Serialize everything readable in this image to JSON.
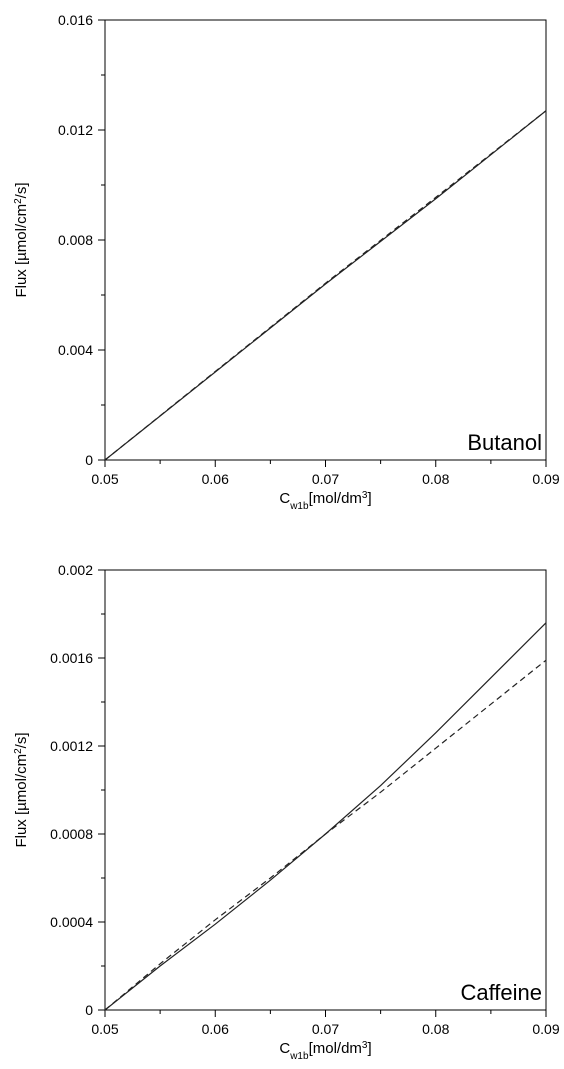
{
  "chart_data": [
    {
      "type": "line",
      "annotation": "Butanol",
      "xlabel": {
        "main": "C",
        "sub": "w1b",
        "unit": "[mol/dm",
        "sup": "3",
        "close": "]"
      },
      "ylabel": {
        "pre": "Flux [µmol/cm",
        "sup": "2",
        "post": "/s]"
      },
      "xlim": [
        0.05,
        0.09
      ],
      "ylim": [
        0,
        0.016
      ],
      "xticks": [
        0.05,
        0.06,
        0.07,
        0.08,
        0.09
      ],
      "xtick_labels": [
        "0.05",
        "0.06",
        "0.07",
        "0.08",
        "0.09"
      ],
      "yticks": [
        0,
        0.004,
        0.008,
        0.012,
        0.016
      ],
      "ytick_labels": [
        "0",
        "0.004",
        "0.008",
        "0.012",
        "0.016"
      ],
      "grid": false,
      "series": [
        {
          "style": "solid",
          "x": [
            0.05,
            0.06,
            0.07,
            0.08,
            0.09
          ],
          "y": [
            0,
            0.0032,
            0.0064,
            0.0095,
            0.0127
          ]
        },
        {
          "style": "dashed",
          "x": [
            0.05,
            0.06,
            0.07,
            0.08,
            0.09
          ],
          "y": [
            0,
            0.00322,
            0.00643,
            0.00955,
            0.0127
          ]
        }
      ]
    },
    {
      "type": "line",
      "annotation": "Caffeine",
      "xlabel": {
        "main": "C",
        "sub": "w1b",
        "unit": "[mol/dm",
        "sup": "3",
        "close": "]"
      },
      "ylabel": {
        "pre": "Flux [µmol/cm",
        "sup": "2",
        "post": "/s]"
      },
      "xlim": [
        0.05,
        0.09
      ],
      "ylim": [
        0,
        0.002
      ],
      "xticks": [
        0.05,
        0.06,
        0.07,
        0.08,
        0.09
      ],
      "xtick_labels": [
        "0.05",
        "0.06",
        "0.07",
        "0.08",
        "0.09"
      ],
      "yticks": [
        0,
        0.0004,
        0.0008,
        0.0012,
        0.0016,
        0.002
      ],
      "ytick_labels": [
        "0",
        "0.0004",
        "0.0008",
        "0.0012",
        "0.0016",
        "0.002"
      ],
      "grid": false,
      "series": [
        {
          "style": "solid",
          "x": [
            0.05,
            0.055,
            0.06,
            0.065,
            0.07,
            0.075,
            0.08,
            0.085,
            0.09
          ],
          "y": [
            0,
            0.0002,
            0.00039,
            0.00059,
            0.0008,
            0.00102,
            0.00126,
            0.00151,
            0.00176
          ]
        },
        {
          "style": "dashed",
          "x": [
            0.05,
            0.055,
            0.06,
            0.065,
            0.07,
            0.075,
            0.08,
            0.085,
            0.09
          ],
          "y": [
            0,
            0.00021,
            0.00041,
            0.0006,
            0.0008,
            0.00099,
            0.00119,
            0.00139,
            0.00159
          ]
        }
      ]
    }
  ]
}
